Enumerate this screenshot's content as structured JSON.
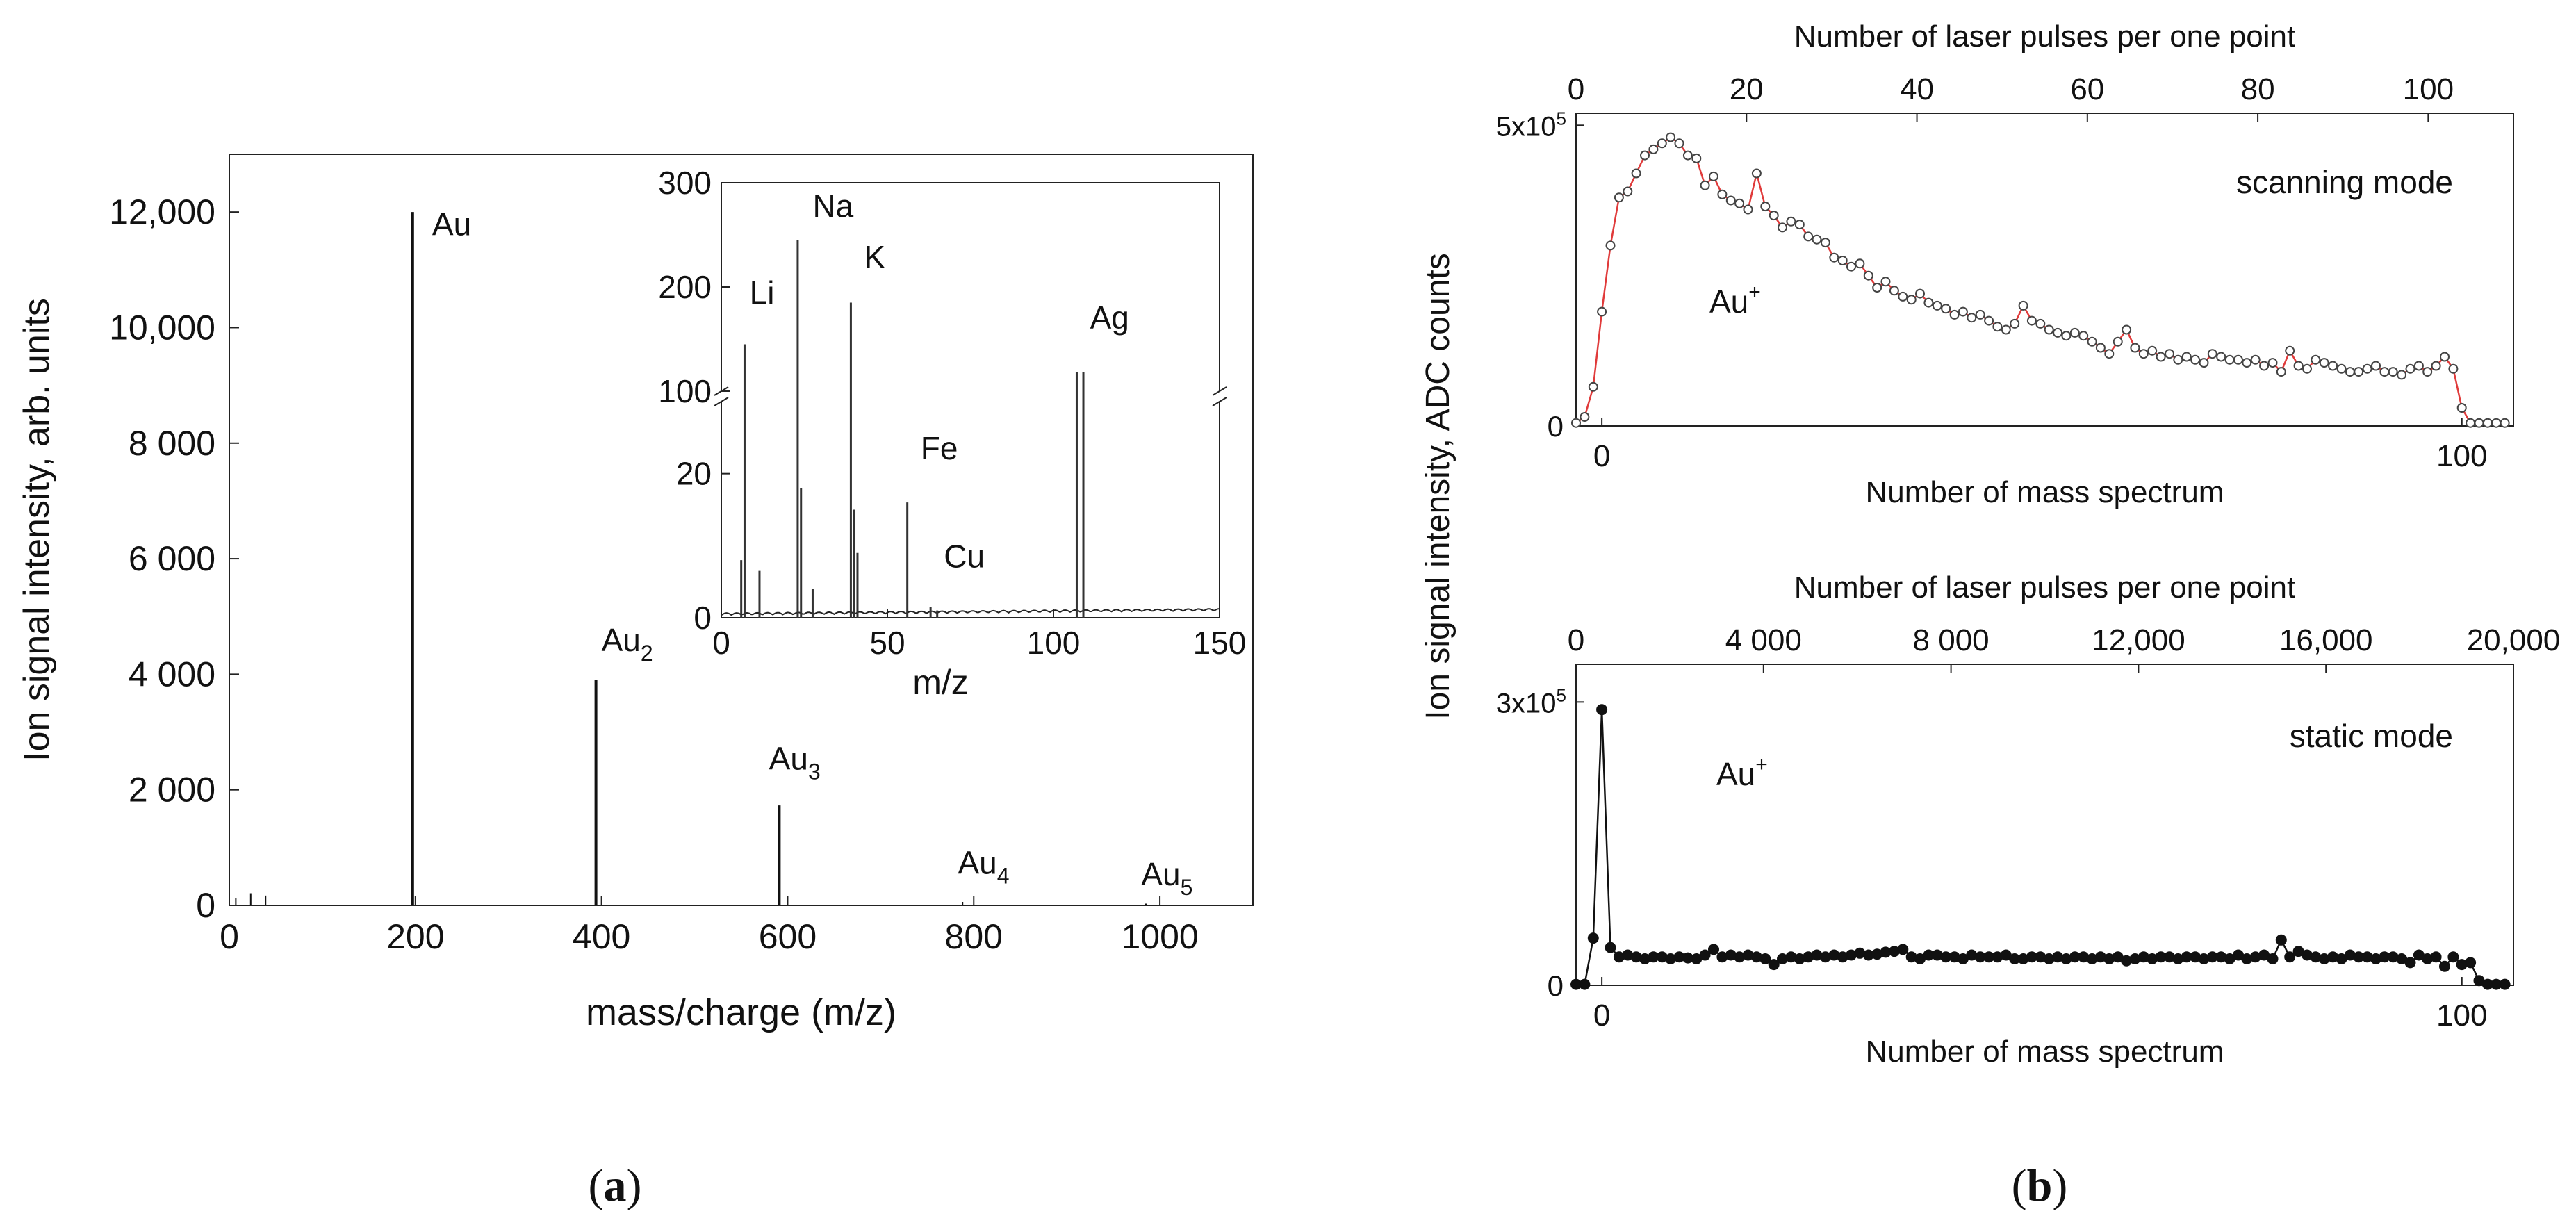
{
  "panel_labels": {
    "a": {
      "open": "(",
      "letter": "a",
      "close": ")"
    },
    "b": {
      "open": "(",
      "letter": "b",
      "close": ")"
    }
  },
  "chart_data": [
    {
      "id": "main",
      "type": "bar",
      "xlabel": "mass/charge (m/z)",
      "ylabel": "Ion signal intensity, arb. units",
      "xlim": [
        0,
        1100
      ],
      "ylim": [
        0,
        13000
      ],
      "xticks": [
        0,
        200,
        400,
        600,
        800,
        1000
      ],
      "xtick_labels": [
        "0",
        "200",
        "400",
        "600",
        "800",
        "1000"
      ],
      "yticks": [
        0,
        2000,
        4000,
        6000,
        8000,
        10000,
        12000
      ],
      "ytick_labels": [
        "0",
        "2 000",
        "4 000",
        "6 000",
        "8 000",
        "10,000",
        "12,000"
      ],
      "peaks": [
        {
          "x": 7,
          "y": 120
        },
        {
          "x": 23,
          "y": 210
        },
        {
          "x": 39,
          "y": 170
        },
        {
          "x": 197,
          "y": 12000
        },
        {
          "x": 394,
          "y": 3900
        },
        {
          "x": 591,
          "y": 1730
        },
        {
          "x": 788,
          "y": 60
        },
        {
          "x": 985,
          "y": 30
        }
      ],
      "annotations": [
        {
          "label": "Au",
          "sub": "",
          "x": 218,
          "y": 11600
        },
        {
          "label": "Au",
          "sub": "2",
          "x": 400,
          "y": 4400
        },
        {
          "label": "Au",
          "sub": "3",
          "x": 580,
          "y": 2350
        },
        {
          "label": "Au",
          "sub": "4",
          "x": 783,
          "y": 550
        },
        {
          "label": "Au",
          "sub": "5",
          "x": 980,
          "y": 350
        }
      ]
    },
    {
      "id": "inset",
      "type": "bar",
      "xlabel": "m/z",
      "ylabel": "",
      "xlim": [
        0,
        150
      ],
      "ylim_lower": [
        0,
        30
      ],
      "ylim_upper": [
        100,
        300
      ],
      "xticks": [
        0,
        50,
        100,
        150
      ],
      "xtick_labels": [
        "0",
        "50",
        "100",
        "150"
      ],
      "yticks_lower": [
        0,
        20
      ],
      "ytick_labels_lower": [
        "0",
        "20"
      ],
      "yticks_upper": [
        100,
        200,
        300
      ],
      "ytick_labels_upper": [
        "100",
        "200",
        "300"
      ],
      "peaks": [
        {
          "x": 6,
          "y": 8
        },
        {
          "x": 7,
          "y": 145
        },
        {
          "x": 11.5,
          "y": 6.5
        },
        {
          "x": 23,
          "y": 245
        },
        {
          "x": 24,
          "y": 18
        },
        {
          "x": 27.5,
          "y": 4
        },
        {
          "x": 39,
          "y": 185
        },
        {
          "x": 40,
          "y": 15
        },
        {
          "x": 41,
          "y": 9
        },
        {
          "x": 56,
          "y": 16
        },
        {
          "x": 63,
          "y": 1.5
        },
        {
          "x": 65,
          "y": 1
        },
        {
          "x": 107,
          "y": 118
        },
        {
          "x": 109,
          "y": 118
        }
      ],
      "annotations": [
        {
          "label": "Li",
          "x": 8.5,
          "y": 184
        },
        {
          "label": "Na",
          "x": 27.5,
          "y": 267
        },
        {
          "label": "K",
          "x": 43,
          "y": 218
        },
        {
          "label": "Fe",
          "x": 60,
          "y": 22
        },
        {
          "label": "Cu",
          "x": 67,
          "y": 7
        },
        {
          "label": "Ag",
          "x": 111,
          "y": 160
        }
      ]
    },
    {
      "id": "scanning",
      "type": "line",
      "marker": "open-circle",
      "line_color": "#e03a3a",
      "mode_label": "scanning mode",
      "ion_label": "Au",
      "ion_sup": "+",
      "xlabel_bottom": "Number of mass spectrum",
      "xlabel_top": "Number of laser pulses per one point",
      "shared_ylabel": "Ion signal intensity, ADC counts",
      "xlim": [
        -3,
        106
      ],
      "ylim": [
        0,
        520000
      ],
      "xticks_bottom": [
        0,
        100
      ],
      "xtick_labels_bottom": [
        "0",
        "100"
      ],
      "xticks_top": [
        0,
        20,
        40,
        60,
        80,
        100
      ],
      "xtick_labels_top": [
        "0",
        "20",
        "40",
        "60",
        "80",
        "100"
      ],
      "top_axis_range": [
        0,
        110
      ],
      "ytick_labels": {
        "zero": "0",
        "top_base": "5x10",
        "top_exp": "5"
      },
      "yticks": [
        0,
        500000
      ],
      "x": [
        -3,
        -2,
        -1,
        0,
        1,
        2,
        3,
        4,
        5,
        6,
        7,
        8,
        9,
        10,
        11,
        12,
        13,
        14,
        15,
        16,
        17,
        18,
        19,
        20,
        21,
        22,
        23,
        24,
        25,
        26,
        27,
        28,
        29,
        30,
        31,
        32,
        33,
        34,
        35,
        36,
        37,
        38,
        39,
        40,
        41,
        42,
        43,
        44,
        45,
        46,
        47,
        48,
        49,
        50,
        51,
        52,
        53,
        54,
        55,
        56,
        57,
        58,
        59,
        60,
        61,
        62,
        63,
        64,
        65,
        66,
        67,
        68,
        69,
        70,
        71,
        72,
        73,
        74,
        75,
        76,
        77,
        78,
        79,
        80,
        81,
        82,
        83,
        84,
        85,
        86,
        87,
        88,
        89,
        90,
        91,
        92,
        93,
        94,
        95,
        96,
        97,
        98,
        99,
        100,
        101,
        102,
        103,
        104,
        105
      ],
      "y": [
        5000,
        15000,
        65000,
        190000,
        300000,
        380000,
        390000,
        420000,
        450000,
        460000,
        470000,
        480000,
        470000,
        450000,
        445000,
        400000,
        415000,
        385000,
        375000,
        370000,
        360000,
        420000,
        365000,
        350000,
        330000,
        340000,
        335000,
        315000,
        310000,
        305000,
        280000,
        275000,
        265000,
        270000,
        250000,
        230000,
        240000,
        225000,
        215000,
        210000,
        220000,
        205000,
        200000,
        195000,
        185000,
        190000,
        180000,
        185000,
        175000,
        165000,
        160000,
        170000,
        200000,
        175000,
        170000,
        160000,
        155000,
        150000,
        155000,
        150000,
        140000,
        130000,
        120000,
        140000,
        160000,
        130000,
        120000,
        125000,
        115000,
        120000,
        110000,
        115000,
        110000,
        105000,
        120000,
        115000,
        110000,
        110000,
        105000,
        110000,
        100000,
        105000,
        90000,
        125000,
        100000,
        95000,
        110000,
        105000,
        100000,
        95000,
        90000,
        90000,
        95000,
        100000,
        90000,
        90000,
        85000,
        95000,
        100000,
        90000,
        100000,
        115000,
        95000,
        30000,
        5000,
        5000,
        5000,
        5000,
        5000
      ]
    },
    {
      "id": "static",
      "type": "line",
      "marker": "filled-circle",
      "line_color": "#111111",
      "mode_label": "static mode",
      "ion_label": "Au",
      "ion_sup": "+",
      "xlabel_bottom": "Number of mass spectrum",
      "xlabel_top": "Number of laser pulses per one point",
      "xlim": [
        -3,
        106
      ],
      "ylim": [
        0,
        340000
      ],
      "xticks_bottom": [
        0,
        100
      ],
      "xtick_labels_bottom": [
        "0",
        "100"
      ],
      "xticks_top": [
        0,
        4000,
        8000,
        12000,
        16000,
        20000
      ],
      "xtick_labels_top": [
        "0",
        "4 000",
        "8 000",
        "12,000",
        "16,000",
        "20,000"
      ],
      "top_axis_range": [
        0,
        20000
      ],
      "ytick_labels": {
        "zero": "0",
        "top_base": "3x10",
        "top_exp": "5"
      },
      "yticks": [
        0,
        300000
      ],
      "x": [
        -3,
        -2,
        -1,
        0,
        1,
        2,
        3,
        4,
        5,
        6,
        7,
        8,
        9,
        10,
        11,
        12,
        13,
        14,
        15,
        16,
        17,
        18,
        19,
        20,
        21,
        22,
        23,
        24,
        25,
        26,
        27,
        28,
        29,
        30,
        31,
        32,
        33,
        34,
        35,
        36,
        37,
        38,
        39,
        40,
        41,
        42,
        43,
        44,
        45,
        46,
        47,
        48,
        49,
        50,
        51,
        52,
        53,
        54,
        55,
        56,
        57,
        58,
        59,
        60,
        61,
        62,
        63,
        64,
        65,
        66,
        67,
        68,
        69,
        70,
        71,
        72,
        73,
        74,
        75,
        76,
        77,
        78,
        79,
        80,
        81,
        82,
        83,
        84,
        85,
        86,
        87,
        88,
        89,
        90,
        91,
        92,
        93,
        94,
        95,
        96,
        97,
        98,
        99,
        100,
        101,
        102,
        103,
        104,
        105
      ],
      "y": [
        1000,
        1000,
        50000,
        292000,
        40000,
        30000,
        32000,
        30000,
        28000,
        30000,
        30000,
        28000,
        30000,
        29000,
        28000,
        32000,
        38000,
        30000,
        32000,
        30000,
        32000,
        30000,
        28000,
        22000,
        28000,
        30000,
        28000,
        30000,
        32000,
        30000,
        32000,
        30000,
        32000,
        34000,
        32000,
        33000,
        35000,
        36000,
        38000,
        30000,
        28000,
        32000,
        32000,
        30000,
        30000,
        28000,
        32000,
        30000,
        30000,
        30000,
        32000,
        28000,
        28000,
        30000,
        30000,
        28000,
        30000,
        28000,
        30000,
        30000,
        28000,
        30000,
        28000,
        30000,
        26000,
        28000,
        30000,
        28000,
        30000,
        30000,
        28000,
        30000,
        30000,
        28000,
        30000,
        30000,
        28000,
        32000,
        28000,
        30000,
        32000,
        28000,
        48000,
        30000,
        36000,
        32000,
        30000,
        28000,
        30000,
        28000,
        32000,
        30000,
        30000,
        28000,
        30000,
        30000,
        28000,
        24000,
        32000,
        28000,
        30000,
        20000,
        30000,
        22000,
        24000,
        5000,
        1000,
        1000,
        1000
      ]
    }
  ]
}
